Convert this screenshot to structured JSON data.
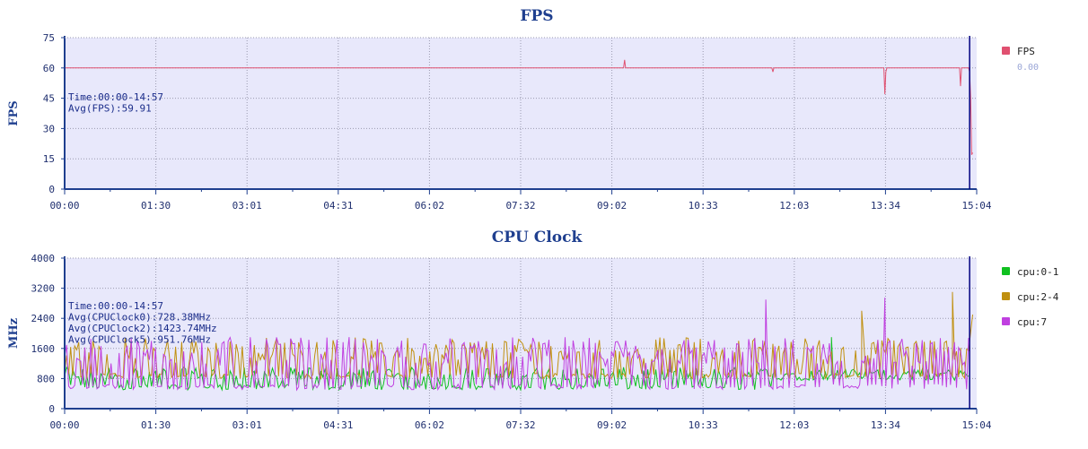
{
  "colors": {
    "plot_bg": "#e8e8fb",
    "axis": "#1f3f8f",
    "grid": "#9a9ab0",
    "cursor": "#000080"
  },
  "chart_data": [
    {
      "type": "line",
      "title": "FPS",
      "ylabel": "FPS",
      "xlabel": "",
      "x_ticks": [
        "00:00",
        "01:30",
        "03:01",
        "04:31",
        "06:02",
        "07:32",
        "09:02",
        "10:33",
        "12:03",
        "13:34",
        "15:04"
      ],
      "y_ticks": [
        "0",
        "15",
        "30",
        "45",
        "60",
        "75"
      ],
      "ylim": [
        0,
        75
      ],
      "x_range_seconds": [
        0,
        904
      ],
      "grid": true,
      "legend_position": "right",
      "cursor_x_seconds": 897,
      "annotation_lines": [
        "Time:00:00-14:57",
        "Avg(FPS):59.91"
      ],
      "series": [
        {
          "name": "FPS",
          "color": "#e05070",
          "legend_value": "0.00",
          "points": [
            [
              0,
              60
            ],
            [
              554,
              60
            ],
            [
              555,
              64
            ],
            [
              556,
              60
            ],
            [
              701,
              60
            ],
            [
              702,
              58
            ],
            [
              703,
              60
            ],
            [
              812,
              60
            ],
            [
              813,
              47
            ],
            [
              814,
              58
            ],
            [
              815,
              60
            ],
            [
              887,
              60
            ],
            [
              888,
              51
            ],
            [
              889,
              60
            ],
            [
              896,
              60
            ],
            [
              897,
              58
            ],
            [
              898,
              45
            ],
            [
              899,
              17
            ],
            [
              900,
              18
            ]
          ]
        }
      ]
    },
    {
      "type": "line",
      "title": "CPU Clock",
      "ylabel": "MHz",
      "xlabel": "",
      "x_ticks": [
        "00:00",
        "01:30",
        "03:01",
        "04:31",
        "06:02",
        "07:32",
        "09:02",
        "10:33",
        "12:03",
        "13:34",
        "15:04"
      ],
      "y_ticks": [
        "0",
        "800",
        "1600",
        "2400",
        "3200",
        "4000"
      ],
      "ylim": [
        0,
        4000
      ],
      "x_range_seconds": [
        0,
        904
      ],
      "grid": true,
      "legend_position": "right",
      "cursor_x_seconds": 897,
      "annotation_lines": [
        "Time:00:00-14:57",
        "Avg(CPUClock0):728.38MHz",
        "Avg(CPUClock2):1423.74MHz",
        "Avg(CPUClock5):951.76MHz"
      ],
      "series": [
        {
          "name": "cpu:0-1",
          "color": "#10c020",
          "base": 500,
          "peak": 1100,
          "spikes": [
            [
              600,
              1500
            ],
            [
              760,
              1900
            ]
          ]
        },
        {
          "name": "cpu:2-4",
          "color": "#c09010",
          "base": 800,
          "peak": 1900,
          "spikes": [
            [
              790,
              2600
            ],
            [
              880,
              3100
            ],
            [
              900,
              2500
            ]
          ]
        },
        {
          "name": "cpu:7",
          "color": "#c040e0",
          "base": 500,
          "peak": 1900,
          "spikes": [
            [
              695,
              2900
            ],
            [
              813,
              2950
            ]
          ]
        }
      ]
    }
  ]
}
